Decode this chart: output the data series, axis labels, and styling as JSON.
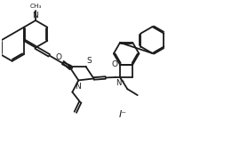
{
  "bg": "#ffffff",
  "lc": "#1a1a1a",
  "lw": 1.3,
  "figsize": [
    2.7,
    1.7
  ],
  "dpi": 100,
  "xlim": [
    0.0,
    2.7
  ],
  "ylim": [
    0.0,
    1.7
  ]
}
